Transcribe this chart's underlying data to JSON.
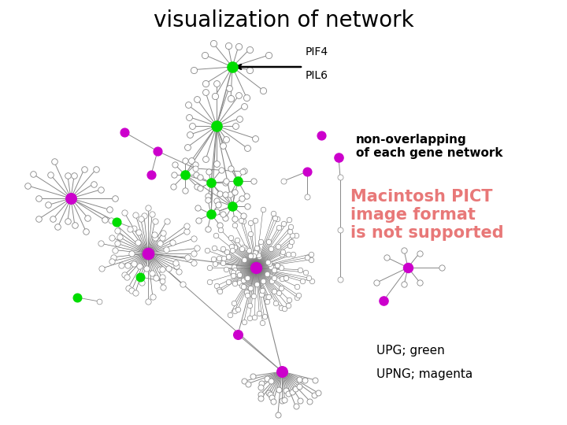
{
  "title": "visualization of network",
  "title_fontsize": 20,
  "background_color": "#ffffff",
  "pif4_label": "PIF4",
  "pil6_label": "PIL6",
  "non_overlapping_label": "non-overlapping\nof each gene network",
  "macintosh_label": "Macintosh PICT\nimage format\nis not supported",
  "upg_label": "UPG; green",
  "upng_label": "UPNG; magenta",
  "green_color": "#00dd00",
  "magenta_color": "#cc00cc",
  "edge_color": "#888888",
  "node_edge_color": "#888888"
}
